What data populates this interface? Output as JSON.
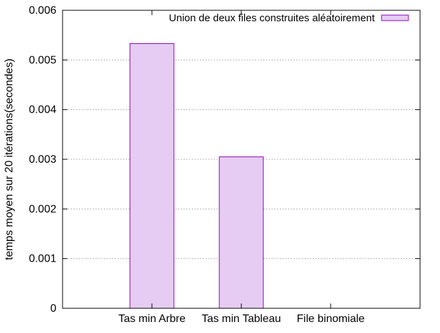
{
  "chart_data": {
    "type": "bar",
    "title": "",
    "xlabel": "",
    "ylabel": "temps moyen sur 20 itérations(secondes)",
    "categories": [
      "Tas min Arbre",
      "Tas min Tableau",
      "File binomiale"
    ],
    "series": [
      {
        "name": "Union de deux files construites aléatoirement",
        "values": [
          0.00533,
          0.00305,
          0.0
        ],
        "fill": "#e6ccf2",
        "stroke": "#8b00c0"
      }
    ],
    "ylim": [
      0,
      0.006
    ],
    "yticks": [
      "0",
      "0.001",
      "0.002",
      "0.003",
      "0.004",
      "0.005",
      "0.006"
    ],
    "grid": true,
    "legend_position": "top-right"
  }
}
